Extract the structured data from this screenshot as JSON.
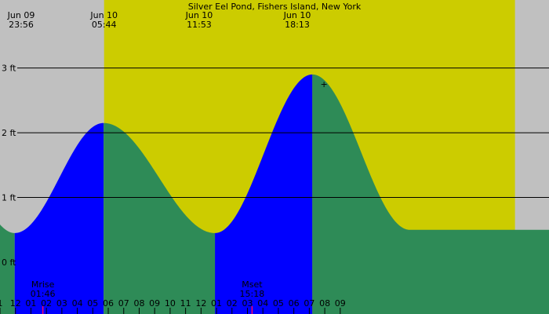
{
  "chart_data": {
    "type": "area",
    "title": "Silver Eel Pond, Fishers Island, New York",
    "xlabel": "",
    "ylabel": "",
    "x_unit": "hour",
    "xlim": [
      -1,
      34.5
    ],
    "ylim": [
      -0.8,
      4.05
    ],
    "y_ticks": [
      {
        "value": 3,
        "label": "3 ft"
      },
      {
        "value": 2,
        "label": "2 ft"
      },
      {
        "value": 1,
        "label": "1 ft"
      },
      {
        "value": 0,
        "label": "0 ft"
      }
    ],
    "grid": true,
    "colors": {
      "night": "#c0c0c0",
      "day": "#cccc00",
      "rising": "#0000ff",
      "falling": "#2e8b57",
      "moon_tick": "#ff0066"
    },
    "daylight": {
      "start": 5.73,
      "end": 32.3
    },
    "top_labels": [
      {
        "x": -0.07,
        "date": "Jun 09",
        "time": "23:56"
      },
      {
        "x": 5.73,
        "date": "Jun 10",
        "time": "05:44"
      },
      {
        "x": 11.88,
        "date": "Jun 10",
        "time": "11:53"
      },
      {
        "x": 18.22,
        "date": "Jun 10",
        "time": "18:13"
      }
    ],
    "hour_labels": [
      "1",
      "12",
      "01",
      "02",
      "03",
      "04",
      "05",
      "06",
      "07",
      "08",
      "09",
      "10",
      "11",
      "12",
      "01",
      "02",
      "03",
      "04",
      "05",
      "06",
      "07",
      "08",
      "09"
    ],
    "hour_label_start": -1,
    "tide_extremes": [
      {
        "x": -3.5,
        "y": 1.2
      },
      {
        "x": -0.05,
        "y": 0.45
      },
      {
        "x": 5.7,
        "y": 2.15
      },
      {
        "x": 12.9,
        "y": 0.45
      },
      {
        "x": 19.2,
        "y": 2.9
      },
      {
        "x": 25.5,
        "y": 0.5
      }
    ],
    "segments": [
      {
        "from": -1,
        "to": -0.05,
        "kind": "falling"
      },
      {
        "from": -0.05,
        "to": 5.7,
        "kind": "rising"
      },
      {
        "from": 5.7,
        "to": 12.9,
        "kind": "falling"
      },
      {
        "from": 12.9,
        "to": 19.2,
        "kind": "rising"
      },
      {
        "from": 19.2,
        "to": 34.5,
        "kind": "falling"
      }
    ],
    "moon_events": [
      {
        "label": "Mrise",
        "time": "01:46",
        "x": 1.77
      },
      {
        "label": "Mset",
        "time": "15:18",
        "x": 15.3
      }
    ],
    "marker": {
      "x": 19.95,
      "y": 2.75,
      "symbol": "+"
    }
  }
}
